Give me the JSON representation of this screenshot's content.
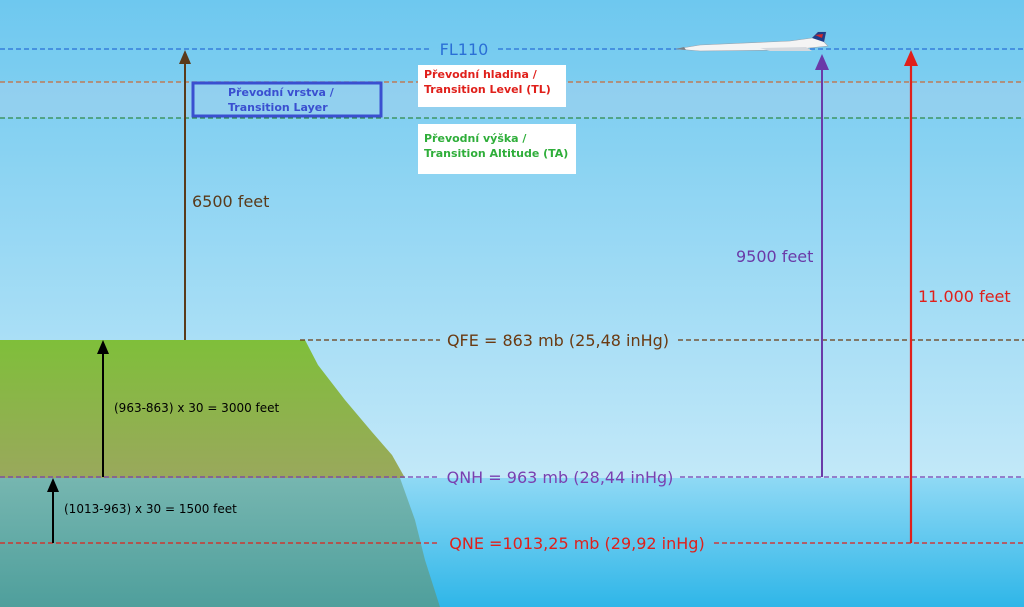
{
  "levels": {
    "fl": {
      "label": "FL110",
      "color": "#2a6fd6"
    },
    "qfe": {
      "label": "QFE = 863 mb (25,48 inHg)",
      "color": "#6b3a12"
    },
    "qnh": {
      "label": "QNH = 963 mb (28,44 inHg)",
      "color": "#7a3fb0"
    },
    "qne": {
      "label": "QNE =1013,25 mb (29,92 inHg)",
      "color": "#e0201b"
    }
  },
  "transition_layer": {
    "line1": "Převodní vrstva /",
    "line2": "Transition Layer",
    "color": "#3a4fd0"
  },
  "transition_level": {
    "line1": "Převodní hladina /",
    "line2": "Transition Level (TL)",
    "color": "#e0201b"
  },
  "transition_altitude": {
    "line1": "Převodní výška /",
    "line2": "Transition Altitude (TA)",
    "color": "#2fae3a"
  },
  "arrows": {
    "a6500": {
      "label": "6500 feet",
      "color": "#5a3a1a"
    },
    "a9500": {
      "label": "9500 feet",
      "color": "#6a3aa8"
    },
    "a11000": {
      "label": "11.000 feet",
      "color": "#e0201b"
    },
    "a3000": {
      "label": "(963-863) x 30 = 3000 feet",
      "color": "#000000"
    },
    "a1500": {
      "label": "(1013-963) x 30 = 1500 feet",
      "color": "#000000"
    }
  }
}
